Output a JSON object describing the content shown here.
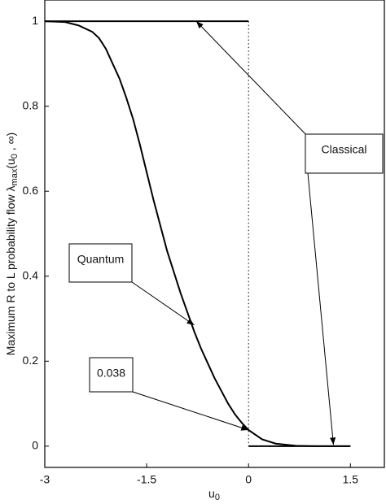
{
  "chart_data": {
    "type": "line",
    "xlabel": [
      "u",
      "0"
    ],
    "ylabel": [
      "Maximum R to L probability flow  λ",
      "max",
      "(u",
      "0",
      " , ∞)"
    ],
    "series": [
      {
        "name": "Quantum",
        "color": "#000000",
        "x": [
          -3,
          -2.7,
          -2.5,
          -2.3,
          -2.2,
          -2.1,
          -2,
          -1.9,
          -1.8,
          -1.7,
          -1.6,
          -1.5,
          -1.4,
          -1.3,
          -1.2,
          -1.1,
          -1,
          -0.9,
          -0.8,
          -0.7,
          -0.6,
          -0.5,
          -0.4,
          -0.3,
          -0.2,
          -0.1,
          0,
          0.2,
          0.4,
          0.7,
          1,
          1.5
        ],
        "values": [
          1,
          0.998,
          0.99,
          0.975,
          0.96,
          0.935,
          0.9,
          0.865,
          0.82,
          0.77,
          0.71,
          0.645,
          0.58,
          0.52,
          0.46,
          0.41,
          0.36,
          0.315,
          0.27,
          0.23,
          0.195,
          0.16,
          0.13,
          0.1,
          0.075,
          0.055,
          0.038,
          0.016,
          0.006,
          0.001,
          0,
          0
        ]
      },
      {
        "name": "Classical",
        "color": "#000000",
        "x": [
          -3,
          0,
          0,
          0,
          1.5
        ],
        "values": [
          1,
          1,
          null,
          0,
          0
        ]
      }
    ],
    "annotations": [
      "Classical",
      "Quantum",
      "0.038"
    ],
    "xlim": [
      -3,
      2
    ],
    "xticks": [
      -3,
      -1.5,
      0,
      1.5
    ],
    "ylim": [
      -0.05,
      1.05
    ],
    "yticks": [
      0,
      0.2,
      0.4,
      0.6,
      0.8,
      1
    ]
  }
}
